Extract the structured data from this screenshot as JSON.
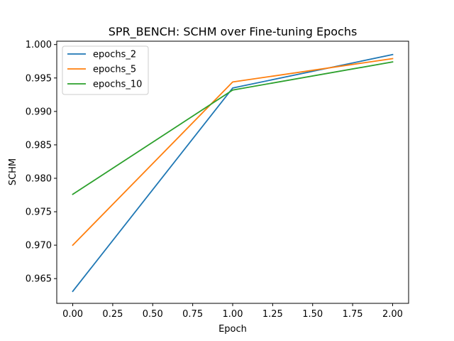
{
  "chart_data": {
    "type": "line",
    "title": "SPR_BENCH: SCHM over Fine-tuning Epochs",
    "xlabel": "Epoch",
    "ylabel": "SCHM",
    "x": [
      0,
      1,
      2
    ],
    "xlim": [
      -0.1,
      2.1
    ],
    "ylim": [
      0.9613,
      1.0005
    ],
    "xticks": [
      0.0,
      0.25,
      0.5,
      0.75,
      1.0,
      1.25,
      1.5,
      1.75,
      2.0
    ],
    "xtick_labels": [
      "0.00",
      "0.25",
      "0.50",
      "0.75",
      "1.00",
      "1.25",
      "1.50",
      "1.75",
      "2.00"
    ],
    "yticks": [
      0.965,
      0.97,
      0.975,
      0.98,
      0.985,
      0.99,
      0.995,
      1.0
    ],
    "ytick_labels": [
      "0.965",
      "0.970",
      "0.975",
      "0.980",
      "0.985",
      "0.990",
      "0.995",
      "1.000"
    ],
    "grid": false,
    "legend_position": "top-left",
    "series": [
      {
        "name": "epochs_2",
        "color": "#1f77b4",
        "values": [
          0.9631,
          0.9935,
          0.9985
        ]
      },
      {
        "name": "epochs_5",
        "color": "#ff7f0e",
        "values": [
          0.97,
          0.9944,
          0.9979
        ]
      },
      {
        "name": "epochs_10",
        "color": "#2ca02c",
        "values": [
          0.9776,
          0.9932,
          0.9974
        ]
      }
    ]
  }
}
